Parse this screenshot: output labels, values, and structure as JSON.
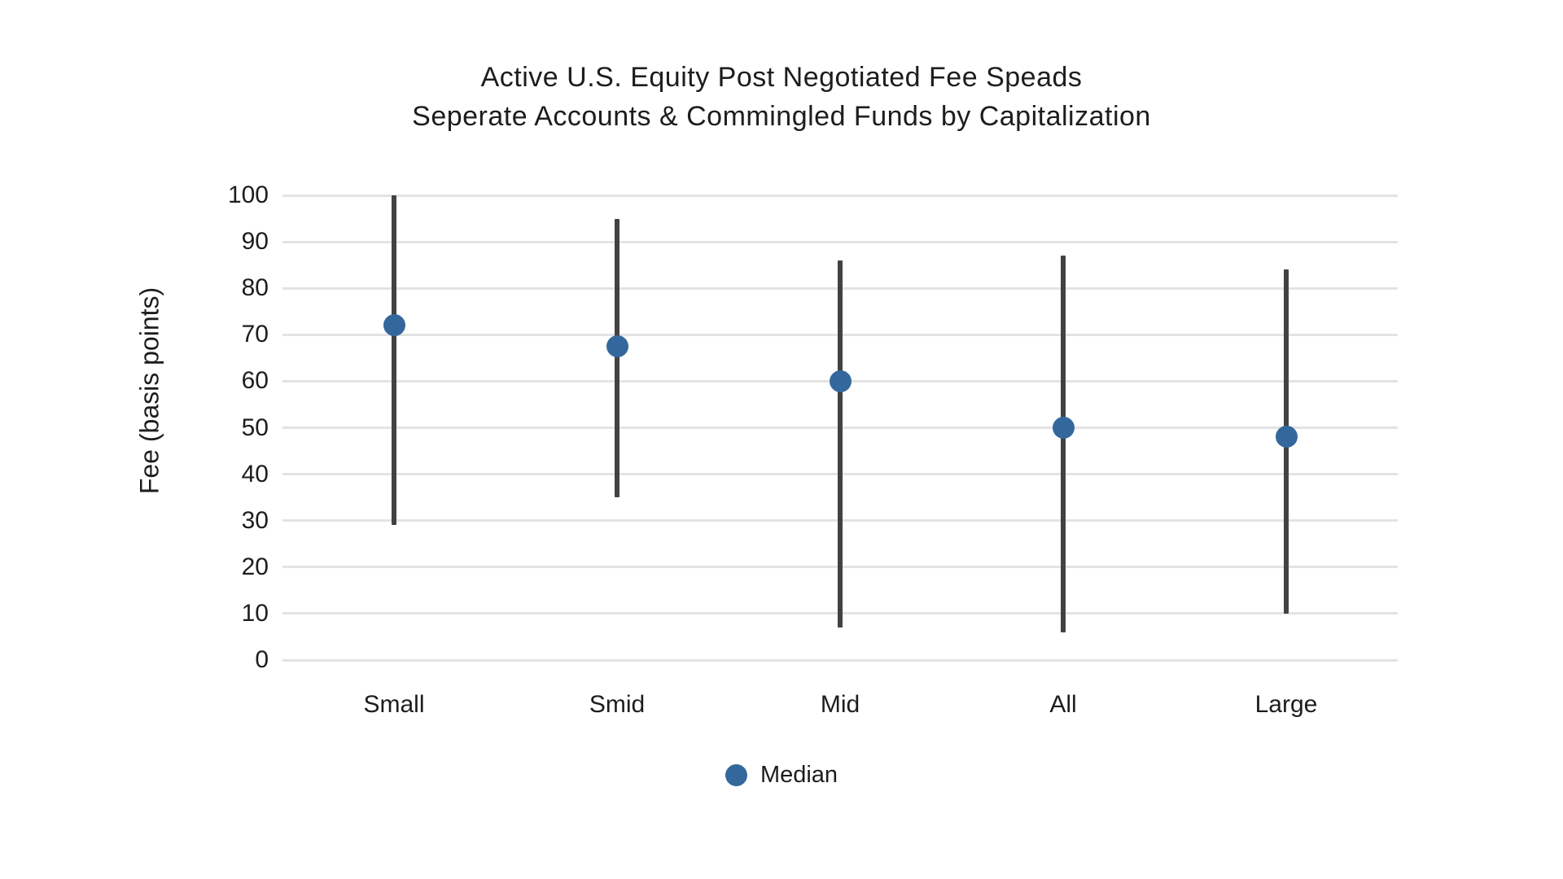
{
  "chart_data": {
    "type": "scatter",
    "subtype": "high-low-range-with-median-dots",
    "title_line1": "Active U.S. Equity Post Negotiated Fee Speads",
    "title_line2": "Seperate Accounts & Commingled Funds by Capitalization",
    "ylabel": "Fee (basis points)",
    "xlabel": "",
    "ylim": [
      0,
      100
    ],
    "ytick_step": 10,
    "ytick_labels": [
      "0",
      "10",
      "20",
      "30",
      "40",
      "50",
      "60",
      "70",
      "80",
      "90",
      "100"
    ],
    "grid": true,
    "legend_position": "bottom-center",
    "categories": [
      "Small",
      "Smid",
      "Mid",
      "All",
      "Large"
    ],
    "series": [
      {
        "name": "Fee range (low to high)",
        "type": "vertical-line",
        "color": "#424242",
        "low": [
          29,
          35,
          7,
          6,
          10
        ],
        "high": [
          100,
          95,
          86,
          87,
          84
        ]
      },
      {
        "name": "Median",
        "type": "dot",
        "color": "#34689C",
        "values": [
          72,
          67.5,
          60,
          50,
          48
        ]
      }
    ],
    "legend": {
      "label": "Median",
      "marker_color": "#34689C"
    }
  },
  "colors": {
    "background": "#FFFFFF",
    "gridline": "#E3E3E3",
    "text": "#1D1D1D",
    "range_line": "#424242",
    "median_dot": "#34689C"
  }
}
